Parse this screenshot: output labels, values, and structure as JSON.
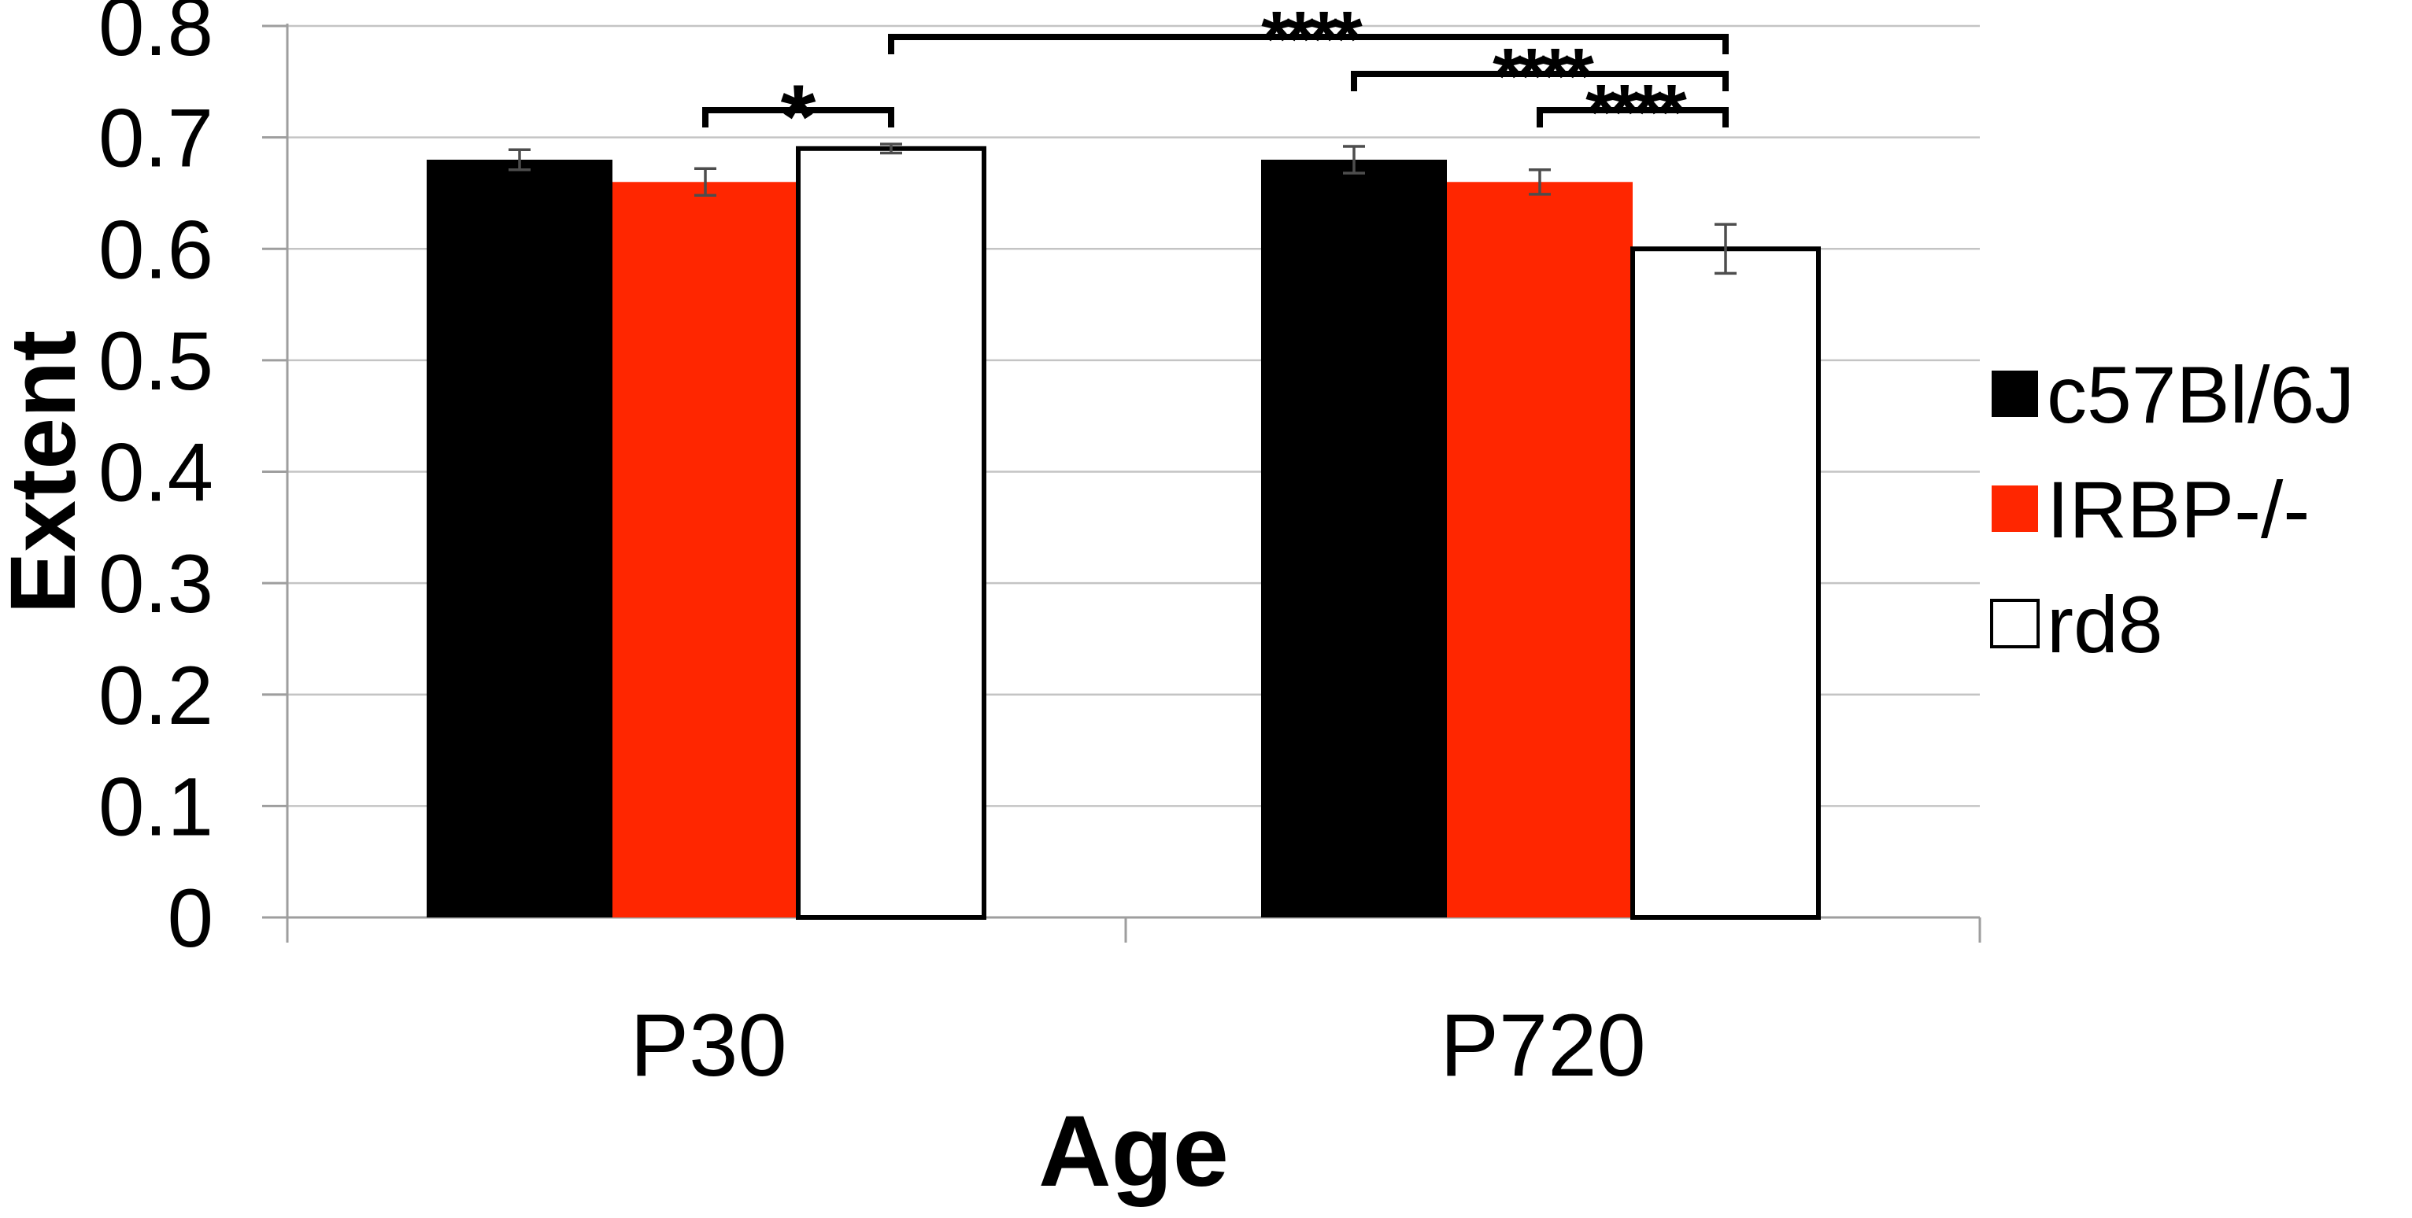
{
  "chart_data": {
    "type": "bar",
    "title": "",
    "xlabel": "Age",
    "ylabel": "Extent",
    "categories": [
      "P30",
      "P720"
    ],
    "series": [
      {
        "name": "c57Bl/6J",
        "color": "#000000",
        "border_color": "#000000",
        "values": [
          0.68,
          0.68
        ],
        "errors": [
          0.009,
          0.012
        ]
      },
      {
        "name": "IRBP-/-",
        "color": "#FF2600",
        "border_color": "#FF2600",
        "values": [
          0.66,
          0.66
        ],
        "errors": [
          0.012,
          0.011
        ]
      },
      {
        "name": "rd8",
        "color": "#FFFFFF",
        "border_color": "#000000",
        "values": [
          0.69,
          0.6
        ],
        "errors": [
          0.004,
          0.022
        ]
      }
    ],
    "ylim": [
      0,
      0.8
    ],
    "ytick_labels": [
      "0",
      "0.1",
      "0.2",
      "0.3",
      "0.4",
      "0.5",
      "0.6",
      "0.7",
      "0.8"
    ],
    "grid": true,
    "legend_position": "right",
    "significance": [
      {
        "label": "*",
        "group_a": "P30",
        "series_a": "IRBP-/-",
        "group_b": "P30",
        "series_b": "rd8",
        "level": 3
      },
      {
        "label": "****",
        "group_a": "P30",
        "series_a": "rd8",
        "group_b": "P720",
        "series_b": "rd8",
        "level": 1
      },
      {
        "label": "****",
        "group_a": "P720",
        "series_a": "c57Bl/6J",
        "group_b": "P720",
        "series_b": "rd8",
        "level": 2
      },
      {
        "label": "****",
        "group_a": "P720",
        "series_a": "IRBP-/-",
        "group_b": "P720",
        "series_b": "rd8",
        "level": 3
      }
    ],
    "colors": {
      "gridline": "#C4C4C4",
      "axis": "#9E9E9E",
      "error_bar": "#4D4D4D",
      "bracket": "#000000",
      "background": "#FFFFFF"
    }
  }
}
